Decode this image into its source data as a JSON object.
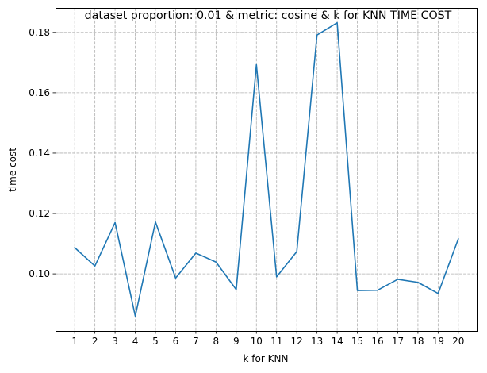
{
  "chart_data": {
    "type": "line",
    "title": "dataset proportion: 0.01 & metric: cosine & k for KNN TIME COST",
    "xlabel": "k for KNN",
    "ylabel": "time cost",
    "x": [
      1,
      2,
      3,
      4,
      5,
      6,
      7,
      8,
      9,
      10,
      11,
      12,
      13,
      14,
      15,
      16,
      17,
      18,
      19,
      20
    ],
    "xticks": [
      "1",
      "2",
      "3",
      "4",
      "5",
      "6",
      "7",
      "8",
      "9",
      "10",
      "11",
      "12",
      "13",
      "14",
      "15",
      "16",
      "17",
      "18",
      "19",
      "20"
    ],
    "series": [
      {
        "values": [
          0.1087,
          0.1026,
          0.117,
          0.086,
          0.1172,
          0.0986,
          0.1069,
          0.1039,
          0.0948,
          0.1693,
          0.099,
          0.1074,
          0.1791,
          0.1832,
          0.0945,
          0.0946,
          0.0982,
          0.0972,
          0.0935,
          0.1116
        ],
        "color": "#1f77b4"
      }
    ],
    "xlim": [
      0.05,
      20.95
    ],
    "ylim": [
      0.0811,
      0.1881
    ],
    "yticks": [
      0.1,
      0.12,
      0.14,
      0.16,
      0.18
    ],
    "ytick_labels": [
      "0.10",
      "0.12",
      "0.14",
      "0.16",
      "0.18"
    ],
    "grid": true,
    "grid_style": "dashed",
    "grid_color": "#b0b0b0"
  }
}
